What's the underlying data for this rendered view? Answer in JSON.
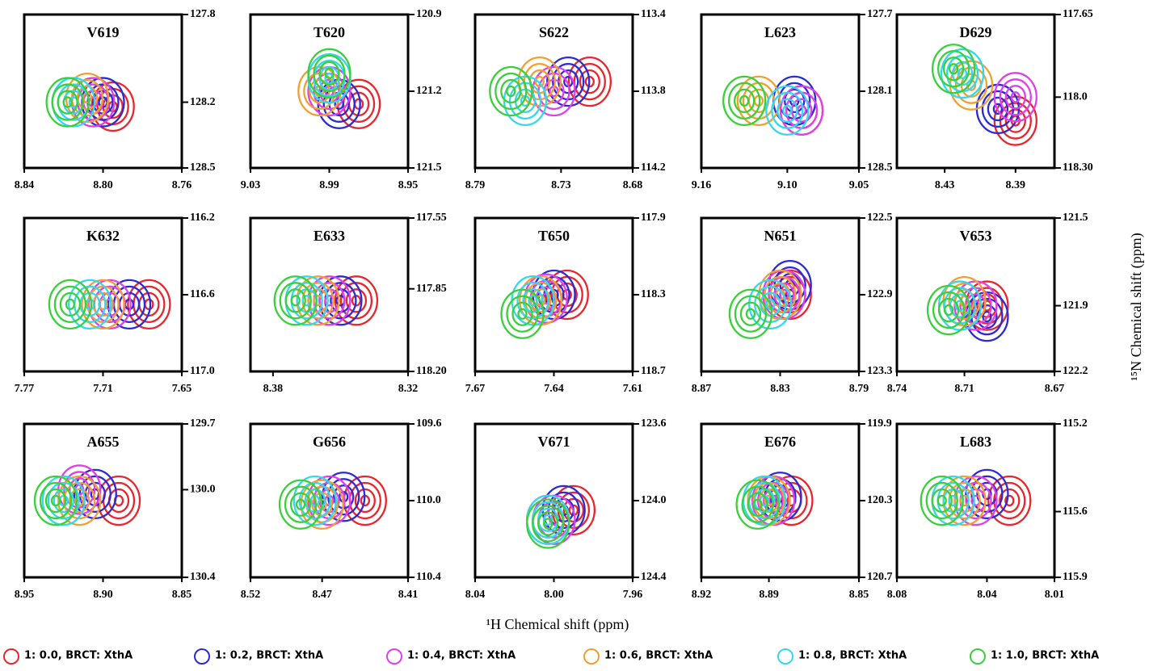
{
  "xlabel": "¹H Chemical shift (ppm)",
  "ylabel": "¹⁵N Chemical shift (ppm)",
  "series": [
    {
      "name": "1: 0.0, BRCT: XthA",
      "color": "#e8262b"
    },
    {
      "name": "1: 0.2, BRCT: XthA",
      "color": "#2a2ad6"
    },
    {
      "name": "1: 0.4, BRCT: XthA",
      "color": "#e040e8"
    },
    {
      "name": "1: 0.6, BRCT: XthA",
      "color": "#f0a030"
    },
    {
      "name": "1: 0.8, BRCT: XthA",
      "color": "#33d8f0"
    },
    {
      "name": "1: 1.0, BRCT: XthA",
      "color": "#3ad03a"
    }
  ],
  "chart_data": [
    {
      "type": "contour",
      "title": "V619",
      "xlim": [
        8.84,
        8.76
      ],
      "xticks": [
        8.84,
        {
          "value": 8.8,
          "label": "8.80"
        },
        8.76
      ],
      "ylim": [
        128.5,
        127.8
      ],
      "yticks": [
        127.8,
        128.2,
        128.5
      ],
      "x": [
        8.795,
        8.8,
        8.805,
        8.808,
        8.815,
        8.818
      ],
      "values": [
        128.22,
        128.2,
        128.2,
        128.18,
        128.2,
        128.2
      ]
    },
    {
      "type": "contour",
      "title": "T620",
      "xlim": [
        9.03,
        8.95
      ],
      "xticks": [
        9.03,
        8.99,
        8.95
      ],
      "ylim": [
        121.5,
        120.9
      ],
      "yticks": [
        120.9,
        121.2,
        121.5
      ],
      "x": [
        8.975,
        8.985,
        8.99,
        8.995,
        8.99,
        8.99
      ],
      "values": [
        121.25,
        121.25,
        121.2,
        121.2,
        121.15,
        121.13
      ]
    },
    {
      "type": "contour",
      "title": "S622",
      "xlim": [
        8.79,
        8.68
      ],
      "xticks": [
        8.79,
        8.73,
        8.68
      ],
      "ylim": [
        114.2,
        113.4
      ],
      "yticks": [
        113.4,
        113.8,
        114.2
      ],
      "x": [
        8.71,
        8.725,
        8.735,
        8.745,
        8.755,
        8.765
      ],
      "values": [
        113.75,
        113.75,
        113.8,
        113.75,
        113.85,
        113.8
      ]
    },
    {
      "type": "contour",
      "title": "L623",
      "xlim": [
        9.16,
        9.05
      ],
      "xticks": [
        9.16,
        {
          "value": 9.1,
          "label": "9.10"
        },
        9.05
      ],
      "ylim": [
        128.5,
        127.7
      ],
      "yticks": [
        127.7,
        128.1,
        128.5
      ],
      "x": [
        9.09,
        9.095,
        9.09,
        9.12,
        9.1,
        9.13
      ],
      "values": [
        128.2,
        128.15,
        128.2,
        128.15,
        128.2,
        128.15
      ]
    },
    {
      "type": "contour",
      "title": "D629",
      "xlim": [
        8.457,
        8.368
      ],
      "xticks": [
        8.43,
        8.39
      ],
      "ylim": [
        118.3,
        117.65
      ],
      "yticks": [
        117.65,
        {
          "value": 118,
          "label": "118.0"
        },
        {
          "value": 118.3,
          "label": "118.30"
        }
      ],
      "x": [
        8.39,
        8.4,
        8.39,
        8.415,
        8.42,
        8.425
      ],
      "values": [
        118.1,
        118.05,
        118.0,
        117.95,
        117.9,
        117.88
      ]
    },
    {
      "type": "contour",
      "title": "K632",
      "xlim": [
        7.77,
        7.65
      ],
      "xticks": [
        7.77,
        7.71,
        7.65
      ],
      "ylim": [
        117,
        116.2
      ],
      "yticks": [
        116.2,
        116.6,
        {
          "value": 117,
          "label": "117.0"
        }
      ],
      "x": [
        7.675,
        7.69,
        7.705,
        7.71,
        7.72,
        7.735
      ],
      "values": [
        116.65,
        116.65,
        116.65,
        116.65,
        116.65,
        116.65
      ]
    },
    {
      "type": "contour",
      "title": "E633",
      "xlim": [
        8.39,
        8.32
      ],
      "xticks": [
        8.38,
        8.32
      ],
      "ylim": [
        118.2,
        117.55
      ],
      "yticks": [
        117.55,
        117.85,
        {
          "value": 118.2,
          "label": "118.20"
        }
      ],
      "x": [
        8.343,
        8.35,
        8.355,
        8.36,
        8.365,
        8.37
      ],
      "values": [
        117.9,
        117.9,
        117.9,
        117.9,
        117.9,
        117.9
      ]
    },
    {
      "type": "contour",
      "title": "T650",
      "xlim": [
        7.67,
        7.61
      ],
      "xticks": [
        7.67,
        7.64,
        7.61
      ],
      "ylim": [
        118.7,
        117.9
      ],
      "yticks": [
        117.9,
        118.3,
        118.7
      ],
      "x": [
        7.635,
        7.64,
        7.643,
        7.645,
        7.648,
        7.652
      ],
      "values": [
        118.3,
        118.3,
        118.32,
        118.33,
        118.33,
        118.4
      ]
    },
    {
      "type": "contour",
      "title": "N651",
      "xlim": [
        8.87,
        8.79
      ],
      "xticks": [
        8.87,
        8.83,
        8.79
      ],
      "ylim": [
        123.3,
        122.5
      ],
      "yticks": [
        122.5,
        122.9,
        123.3
      ],
      "x": [
        8.825,
        8.825,
        8.828,
        8.83,
        8.835,
        8.845
      ],
      "values": [
        122.9,
        122.85,
        122.9,
        122.9,
        122.95,
        123.0
      ]
    },
    {
      "type": "contour",
      "title": "V653",
      "xlim": [
        8.74,
        8.67
      ],
      "xticks": [
        8.74,
        8.71,
        8.67
      ],
      "ylim": [
        122.2,
        121.5
      ],
      "yticks": [
        121.5,
        121.9,
        122.2
      ],
      "x": [
        8.7,
        8.7,
        8.705,
        8.71,
        8.712,
        8.717
      ],
      "values": [
        121.9,
        121.95,
        121.9,
        121.88,
        121.9,
        121.92
      ]
    },
    {
      "type": "contour",
      "title": "A655",
      "xlim": [
        8.95,
        8.85
      ],
      "xticks": [
        8.95,
        {
          "value": 8.9,
          "label": "8.90"
        },
        8.85
      ],
      "ylim": [
        130.4,
        129.7
      ],
      "yticks": [
        129.7,
        {
          "value": 130,
          "label": "130.0"
        },
        130.4
      ],
      "x": [
        8.89,
        8.905,
        8.915,
        8.915,
        8.925,
        8.93
      ],
      "values": [
        130.05,
        130.02,
        130.0,
        130.05,
        130.05,
        130.05
      ]
    },
    {
      "type": "contour",
      "title": "G656",
      "xlim": [
        8.52,
        8.41
      ],
      "xticks": [
        8.52,
        8.47,
        8.41
      ],
      "ylim": [
        110.4,
        109.6
      ],
      "yticks": [
        109.6,
        {
          "value": 110,
          "label": "110.0"
        },
        110.4
      ],
      "x": [
        8.44,
        8.455,
        8.465,
        8.47,
        8.475,
        8.485
      ],
      "values": [
        110.0,
        109.98,
        110.0,
        110.02,
        110.0,
        110.02
      ]
    },
    {
      "type": "contour",
      "title": "V671",
      "xlim": [
        8.04,
        7.96
      ],
      "xticks": [
        8.04,
        {
          "value": 8,
          "label": "8.00"
        },
        7.96
      ],
      "ylim": [
        124.4,
        123.6
      ],
      "yticks": [
        123.6,
        {
          "value": 124,
          "label": "124.0"
        },
        124.4
      ],
      "x": [
        7.99,
        7.995,
        8.0,
        8.003,
        8.003,
        8.003
      ],
      "values": [
        124.05,
        124.05,
        124.1,
        124.1,
        124.1,
        124.12
      ]
    },
    {
      "type": "contour",
      "title": "E676",
      "xlim": [
        8.92,
        8.85
      ],
      "xticks": [
        8.92,
        8.89,
        8.85
      ],
      "ylim": [
        120.7,
        119.9
      ],
      "yticks": [
        119.9,
        120.3,
        120.7
      ],
      "x": [
        8.88,
        8.885,
        8.888,
        8.89,
        8.892,
        8.895
      ],
      "values": [
        120.3,
        120.28,
        120.3,
        120.3,
        120.3,
        120.32
      ]
    },
    {
      "type": "contour",
      "title": "L683",
      "xlim": [
        8.08,
        8.01
      ],
      "xticks": [
        8.08,
        8.04,
        8.01
      ],
      "ylim": [
        115.9,
        115.2
      ],
      "yticks": [
        115.2,
        115.6,
        115.9
      ],
      "x": [
        8.03,
        8.04,
        8.045,
        8.05,
        8.055,
        8.06
      ],
      "values": [
        115.55,
        115.52,
        115.55,
        115.55,
        115.55,
        115.55
      ]
    }
  ]
}
